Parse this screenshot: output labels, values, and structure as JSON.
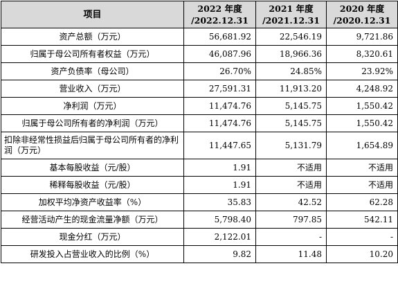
{
  "table": {
    "header": {
      "label": "项目",
      "years": [
        {
          "year": "2022 年度",
          "date": "/2022.12.31"
        },
        {
          "year": "2021 年度",
          "date": "/2021.12.31"
        },
        {
          "year": "2020 年度",
          "date": "/2020.12.31"
        }
      ]
    },
    "rows": [
      {
        "label": "资产总额（万元）",
        "values": [
          "56,681.92",
          "22,546.19",
          "9,721.86"
        ]
      },
      {
        "label": "归属于母公司所有者权益（万元）",
        "values": [
          "46,087.96",
          "18,966.36",
          "8,320.61"
        ]
      },
      {
        "label": "资产负债率（母公司）",
        "values": [
          "26.70%",
          "24.85%",
          "23.92%"
        ]
      },
      {
        "label": "营业收入（万元）",
        "values": [
          "27,591.31",
          "11,913.20",
          "4,248.92"
        ]
      },
      {
        "label": "净利润（万元）",
        "values": [
          "11,474.76",
          "5,145.75",
          "1,550.42"
        ]
      },
      {
        "label": "归属于母公司所有者的净利润（万元）",
        "values": [
          "11,474.76",
          "5,145.75",
          "1,550.42"
        ]
      },
      {
        "label": "扣除非经常性损益后归属于母公司所有者的净利润（万元）",
        "values": [
          "11,447.65",
          "5,131.79",
          "1,654.89"
        ]
      },
      {
        "label": "基本每股收益（元/股）",
        "values": [
          "1.91",
          "不适用",
          "不适用"
        ]
      },
      {
        "label": "稀释每股收益（元/股）",
        "values": [
          "1.91",
          "不适用",
          "不适用"
        ]
      },
      {
        "label": "加权平均净资产收益率（%）",
        "values": [
          "35.83",
          "42.52",
          "62.28"
        ]
      },
      {
        "label": "经营活动产生的现金流量净额（万元）",
        "values": [
          "5,798.40",
          "797.85",
          "542.11"
        ]
      },
      {
        "label": "现金分红（万元）",
        "values": [
          "2,122.01",
          "-",
          "-"
        ]
      },
      {
        "label": "研发投入占营业收入的比例（%）",
        "values": [
          "9.82",
          "11.48",
          "10.20"
        ]
      }
    ]
  }
}
